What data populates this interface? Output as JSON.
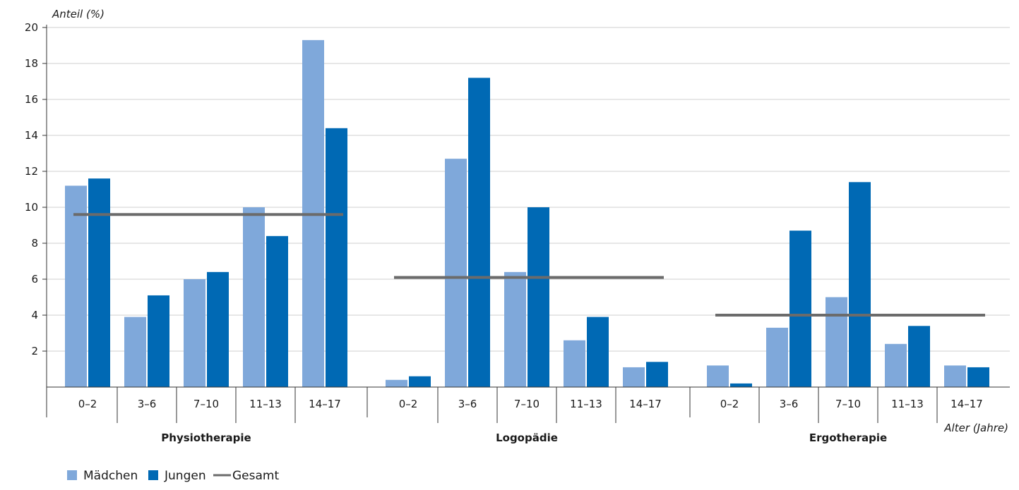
{
  "chart_data": {
    "type": "bar",
    "ylabel": "Anteil (%)",
    "xlabel": "Alter (Jahre)",
    "ylim": [
      0,
      20
    ],
    "yticks": [
      2,
      4,
      6,
      8,
      10,
      12,
      14,
      16,
      18,
      20
    ],
    "grid": true,
    "legend_position": "bottom-left",
    "groups": [
      {
        "name": "Physiotherapie",
        "categories": [
          "0–2",
          "3–6",
          "7–10",
          "11–13",
          "14–17"
        ],
        "series": [
          {
            "name": "Mädchen",
            "values": [
              11.2,
              3.9,
              6.0,
              10.0,
              19.3
            ]
          },
          {
            "name": "Jungen",
            "values": [
              11.6,
              5.1,
              6.4,
              8.4,
              14.4
            ]
          }
        ],
        "gesamt": 9.6
      },
      {
        "name": "Logopädie",
        "categories": [
          "0–2",
          "3–6",
          "7–10",
          "11–13",
          "14–17"
        ],
        "series": [
          {
            "name": "Mädchen",
            "values": [
              0.4,
              12.7,
              6.4,
              2.6,
              1.1
            ]
          },
          {
            "name": "Jungen",
            "values": [
              0.6,
              17.2,
              10.0,
              3.9,
              1.4
            ]
          }
        ],
        "gesamt": 6.1
      },
      {
        "name": "Ergotherapie",
        "categories": [
          "0–2",
          "3–6",
          "7–10",
          "11–13",
          "14–17"
        ],
        "series": [
          {
            "name": "Mädchen",
            "values": [
              1.2,
              3.3,
              5.0,
              2.4,
              1.2
            ]
          },
          {
            "name": "Jungen",
            "values": [
              0.2,
              8.7,
              11.4,
              3.4,
              1.1
            ]
          }
        ],
        "gesamt": 4.0
      }
    ],
    "legend": [
      {
        "name": "Mädchen",
        "kind": "bar"
      },
      {
        "name": "Jungen",
        "kind": "bar"
      },
      {
        "name": "Gesamt",
        "kind": "line"
      }
    ],
    "colors": {
      "maedchen": "#7fa8da",
      "jungen": "#0069b4",
      "gesamt": "#6b6b6b",
      "grid": "#cfcfcf",
      "axis": "#333333"
    }
  }
}
